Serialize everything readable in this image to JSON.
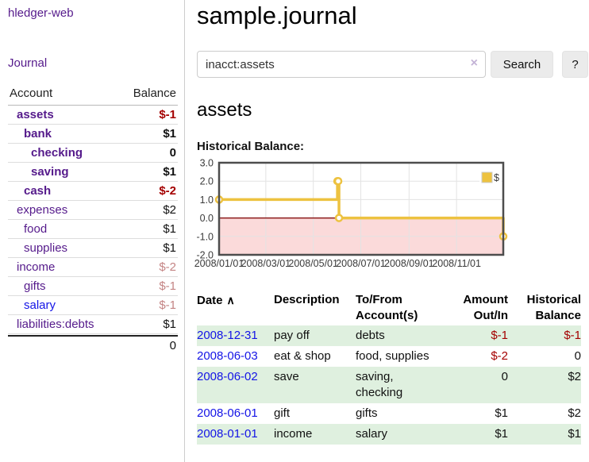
{
  "colors": {
    "accent_purple": "#551a8b",
    "link_blue": "#1414e6",
    "negative_strong": "#a40000",
    "negative_soft": "#c48484",
    "stripe_green": "#dff0df",
    "chart_series_yellow": "#EDC240",
    "chart_negative_fill": "#fbdada",
    "chart_zero_line": "#8b1a1a"
  },
  "sidebar": {
    "app_title": "hledger-web",
    "journal_link": "Journal",
    "accounts": {
      "col_account": "Account",
      "col_balance": "Balance",
      "rows": [
        {
          "name": "assets",
          "balance": "$-1",
          "depth": 1,
          "bold": true,
          "balance_style": "neg-strong",
          "link_color": "purple"
        },
        {
          "name": "bank",
          "balance": "$1",
          "depth": 2,
          "bold": true,
          "balance_style": "",
          "link_color": "purple"
        },
        {
          "name": "checking",
          "balance": "0",
          "depth": 3,
          "bold": true,
          "balance_style": "",
          "link_color": "purple"
        },
        {
          "name": "saving",
          "balance": "$1",
          "depth": 3,
          "bold": true,
          "balance_style": "",
          "link_color": "purple"
        },
        {
          "name": "cash",
          "balance": "$-2",
          "depth": 2,
          "bold": true,
          "balance_style": "neg-strong",
          "link_color": "purple"
        },
        {
          "name": "expenses",
          "balance": "$2",
          "depth": 1,
          "bold": false,
          "balance_style": "",
          "link_color": "purple"
        },
        {
          "name": "food",
          "balance": "$1",
          "depth": 2,
          "bold": false,
          "balance_style": "",
          "link_color": "purple"
        },
        {
          "name": "supplies",
          "balance": "$1",
          "depth": 2,
          "bold": false,
          "balance_style": "",
          "link_color": "purple"
        },
        {
          "name": "income",
          "balance": "$-2",
          "depth": 1,
          "bold": false,
          "balance_style": "neg-soft",
          "link_color": "purple"
        },
        {
          "name": "gifts",
          "balance": "$-1",
          "depth": 2,
          "bold": false,
          "balance_style": "neg-soft",
          "link_color": "purple"
        },
        {
          "name": "salary",
          "balance": "$-1",
          "depth": 2,
          "bold": false,
          "balance_style": "neg-soft",
          "link_color": "blue"
        },
        {
          "name": "liabilities:debts",
          "balance": "$1",
          "depth": 1,
          "bold": false,
          "balance_style": "",
          "link_color": "purple"
        }
      ],
      "total": "0"
    }
  },
  "main": {
    "title": "sample.journal",
    "search": {
      "value": "inacct:assets",
      "clear_icon": "×",
      "search_label": "Search",
      "help_label": "?"
    },
    "heading": "assets",
    "chart_title": "Historical Balance:"
  },
  "chart_data": {
    "type": "line",
    "style": "step",
    "title": "Historical Balance",
    "series": [
      {
        "name": "$",
        "color": "#EDC240",
        "points": [
          [
            "2008-01-01",
            1
          ],
          [
            "2008-06-01",
            2
          ],
          [
            "2008-06-02",
            2
          ],
          [
            "2008-06-03",
            0
          ],
          [
            "2008-12-31",
            -1
          ]
        ]
      }
    ],
    "xlim": [
      "2008-01-01",
      "2008-12-31"
    ],
    "ylim": [
      -2,
      3
    ],
    "x_ticks": [
      [
        "2008-01-01",
        "2008/01/01"
      ],
      [
        "2008-03-01",
        "2008/03/01"
      ],
      [
        "2008-05-01",
        "2008/05/01"
      ],
      [
        "2008-07-01",
        "2008/07/01"
      ],
      [
        "2008-09-01",
        "2008/09/01"
      ],
      [
        "2008-11-01",
        "2008/11/01"
      ]
    ],
    "y_ticks": [
      [
        3,
        "3.0"
      ],
      [
        2,
        "2.0"
      ],
      [
        1,
        "1.0"
      ],
      [
        0,
        "0.0"
      ],
      [
        -1,
        "-1.0"
      ],
      [
        -2,
        "-2.0"
      ]
    ],
    "legend": {
      "position": "top-right",
      "label": "$"
    },
    "grid": true,
    "chart_colors": {
      "series": "#EDC240",
      "negative_fill": "#fbdada",
      "zero_line": "#8b1a1a",
      "grid": "#e3e3e3",
      "border": "#4d4d4d",
      "tick_text": "#3a3a3a",
      "marker_fill": "#ffffff"
    }
  },
  "register": {
    "headers": {
      "date": "Date",
      "sort_icon": "∧",
      "description": "Description",
      "account_lines": [
        "To/From",
        "Account(s)"
      ],
      "amount_lines": [
        "Amount",
        "Out/In"
      ],
      "balance_lines": [
        "Historical",
        "Balance"
      ]
    },
    "rows": [
      {
        "date": "2008-12-31",
        "description": "pay off",
        "accounts": [
          "debts"
        ],
        "amount": "$-1",
        "amount_negative": true,
        "balance": "$-1",
        "balance_negative": true
      },
      {
        "date": "2008-06-03",
        "description": "eat & shop",
        "accounts": [
          "food, supplies"
        ],
        "amount": "$-2",
        "amount_negative": true,
        "balance": "0",
        "balance_negative": false
      },
      {
        "date": "2008-06-02",
        "description": "save",
        "accounts": [
          "saving,",
          "checking"
        ],
        "amount": "0",
        "amount_negative": false,
        "balance": "$2",
        "balance_negative": false
      },
      {
        "date": "2008-06-01",
        "description": "gift",
        "accounts": [
          "gifts"
        ],
        "amount": "$1",
        "amount_negative": false,
        "balance": "$2",
        "balance_negative": false
      },
      {
        "date": "2008-01-01",
        "description": "income",
        "accounts": [
          "salary"
        ],
        "amount": "$1",
        "amount_negative": false,
        "balance": "$1",
        "balance_negative": false
      }
    ]
  }
}
